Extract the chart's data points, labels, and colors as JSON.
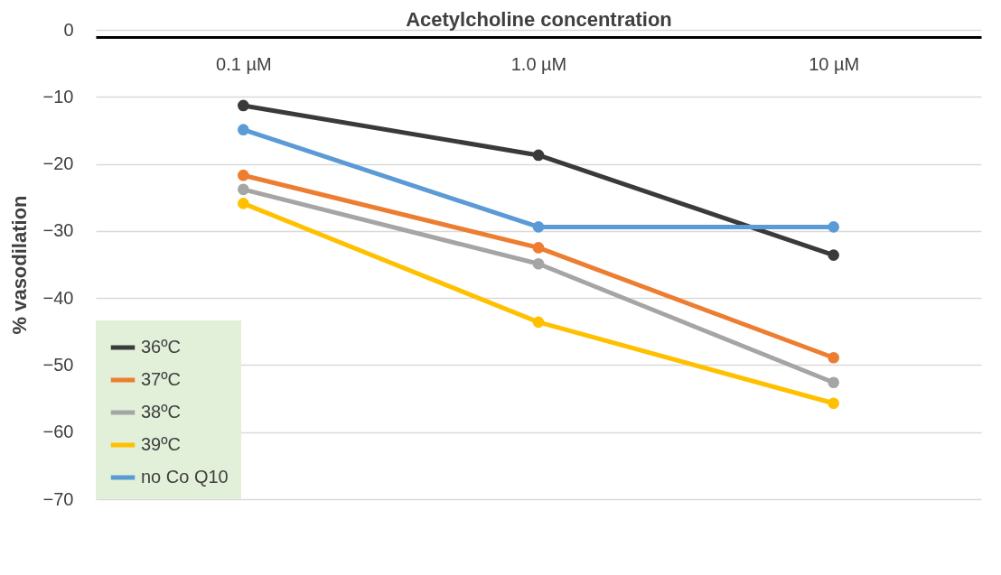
{
  "chart_data": {
    "type": "line",
    "xlabel": "Acetylcholine concentration",
    "ylabel": "% vasodilation",
    "categories": [
      "0.1 µM",
      "1.0 µM",
      "10 µM"
    ],
    "series": [
      {
        "name": "36ºC",
        "color": "#3a3a3a",
        "values": [
          -11.3,
          -18.7,
          -33.6
        ]
      },
      {
        "name": "37ºC",
        "color": "#ed7d31",
        "values": [
          -21.7,
          -32.5,
          -48.9
        ]
      },
      {
        "name": "38ºC",
        "color": "#a5a5a5",
        "values": [
          -23.8,
          -34.9,
          -52.6
        ]
      },
      {
        "name": "39ºC",
        "color": "#ffc000",
        "values": [
          -25.9,
          -43.6,
          -55.7
        ]
      },
      {
        "name": "no Co Q10",
        "color": "#5b9bd5",
        "values": [
          -14.9,
          -29.4,
          -29.4
        ]
      }
    ],
    "ylim": [
      -70,
      0
    ],
    "yticks": [
      0,
      -10,
      -20,
      -30,
      -40,
      -50,
      -60,
      -70
    ],
    "grid": "y",
    "legend": "bottom left",
    "marker": "circle",
    "line_style": "solid"
  }
}
